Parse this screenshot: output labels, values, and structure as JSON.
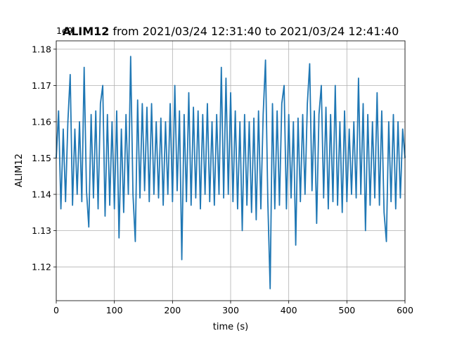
{
  "chart_data": {
    "type": "line",
    "title_bold": "ALIM12",
    "title": "from 2021/03/24 12:31:40 to 2021/03/24 12:41:40",
    "offset_label": "1e9",
    "xlabel": "time (s)",
    "ylabel": "ALIM12",
    "xlim": [
      0,
      600
    ],
    "ylim": [
      1.1107,
      1.1823
    ],
    "xticks": [
      0,
      100,
      200,
      300,
      400,
      500,
      600
    ],
    "yticks": [
      1.12,
      1.13,
      1.14,
      1.15,
      1.16,
      1.17,
      1.18
    ],
    "grid": true,
    "series": [
      {
        "name": "ALIM12",
        "color": "#1f77b4",
        "x": [
          0,
          4,
          8,
          12,
          16,
          20,
          24,
          28,
          32,
          36,
          40,
          44,
          48,
          52,
          56,
          60,
          64,
          68,
          72,
          76,
          80,
          84,
          88,
          92,
          96,
          100,
          104,
          108,
          112,
          116,
          120,
          124,
          128,
          132,
          136,
          140,
          144,
          148,
          152,
          156,
          160,
          164,
          168,
          172,
          176,
          180,
          184,
          188,
          192,
          196,
          200,
          204,
          208,
          212,
          216,
          220,
          224,
          228,
          232,
          236,
          240,
          244,
          248,
          252,
          256,
          260,
          264,
          268,
          272,
          276,
          280,
          284,
          288,
          292,
          296,
          300,
          304,
          308,
          312,
          316,
          320,
          324,
          328,
          332,
          336,
          340,
          344,
          348,
          352,
          356,
          360,
          364,
          368,
          372,
          376,
          380,
          384,
          388,
          392,
          396,
          400,
          404,
          408,
          412,
          416,
          420,
          424,
          428,
          432,
          436,
          440,
          444,
          448,
          452,
          456,
          460,
          464,
          468,
          472,
          476,
          480,
          484,
          488,
          492,
          496,
          500,
          504,
          508,
          512,
          516,
          520,
          524,
          528,
          532,
          536,
          540,
          544,
          548,
          552,
          556,
          560,
          564,
          568,
          572,
          576,
          580,
          584,
          588,
          592,
          596,
          600
        ],
        "values": [
          1.15,
          1.163,
          1.136,
          1.158,
          1.138,
          1.16,
          1.173,
          1.137,
          1.158,
          1.14,
          1.16,
          1.138,
          1.175,
          1.141,
          1.131,
          1.162,
          1.139,
          1.163,
          1.136,
          1.165,
          1.17,
          1.134,
          1.162,
          1.137,
          1.16,
          1.136,
          1.163,
          1.128,
          1.158,
          1.135,
          1.162,
          1.14,
          1.178,
          1.14,
          1.127,
          1.166,
          1.139,
          1.165,
          1.141,
          1.164,
          1.138,
          1.165,
          1.14,
          1.16,
          1.139,
          1.161,
          1.137,
          1.16,
          1.14,
          1.165,
          1.138,
          1.17,
          1.141,
          1.163,
          1.122,
          1.162,
          1.138,
          1.168,
          1.137,
          1.164,
          1.139,
          1.163,
          1.136,
          1.162,
          1.14,
          1.165,
          1.138,
          1.16,
          1.137,
          1.162,
          1.14,
          1.175,
          1.139,
          1.172,
          1.14,
          1.168,
          1.138,
          1.163,
          1.136,
          1.16,
          1.13,
          1.162,
          1.137,
          1.16,
          1.135,
          1.161,
          1.133,
          1.163,
          1.136,
          1.162,
          1.177,
          1.138,
          1.114,
          1.165,
          1.136,
          1.163,
          1.137,
          1.165,
          1.17,
          1.136,
          1.162,
          1.139,
          1.16,
          1.126,
          1.161,
          1.138,
          1.162,
          1.14,
          1.165,
          1.176,
          1.141,
          1.163,
          1.132,
          1.162,
          1.17,
          1.139,
          1.164,
          1.136,
          1.162,
          1.138,
          1.17,
          1.137,
          1.16,
          1.135,
          1.163,
          1.138,
          1.158,
          1.14,
          1.16,
          1.139,
          1.172,
          1.14,
          1.165,
          1.13,
          1.162,
          1.137,
          1.16,
          1.139,
          1.168,
          1.137,
          1.163,
          1.135,
          1.127,
          1.16,
          1.138,
          1.162,
          1.136,
          1.16,
          1.139,
          1.158,
          1.15
        ]
      }
    ]
  }
}
